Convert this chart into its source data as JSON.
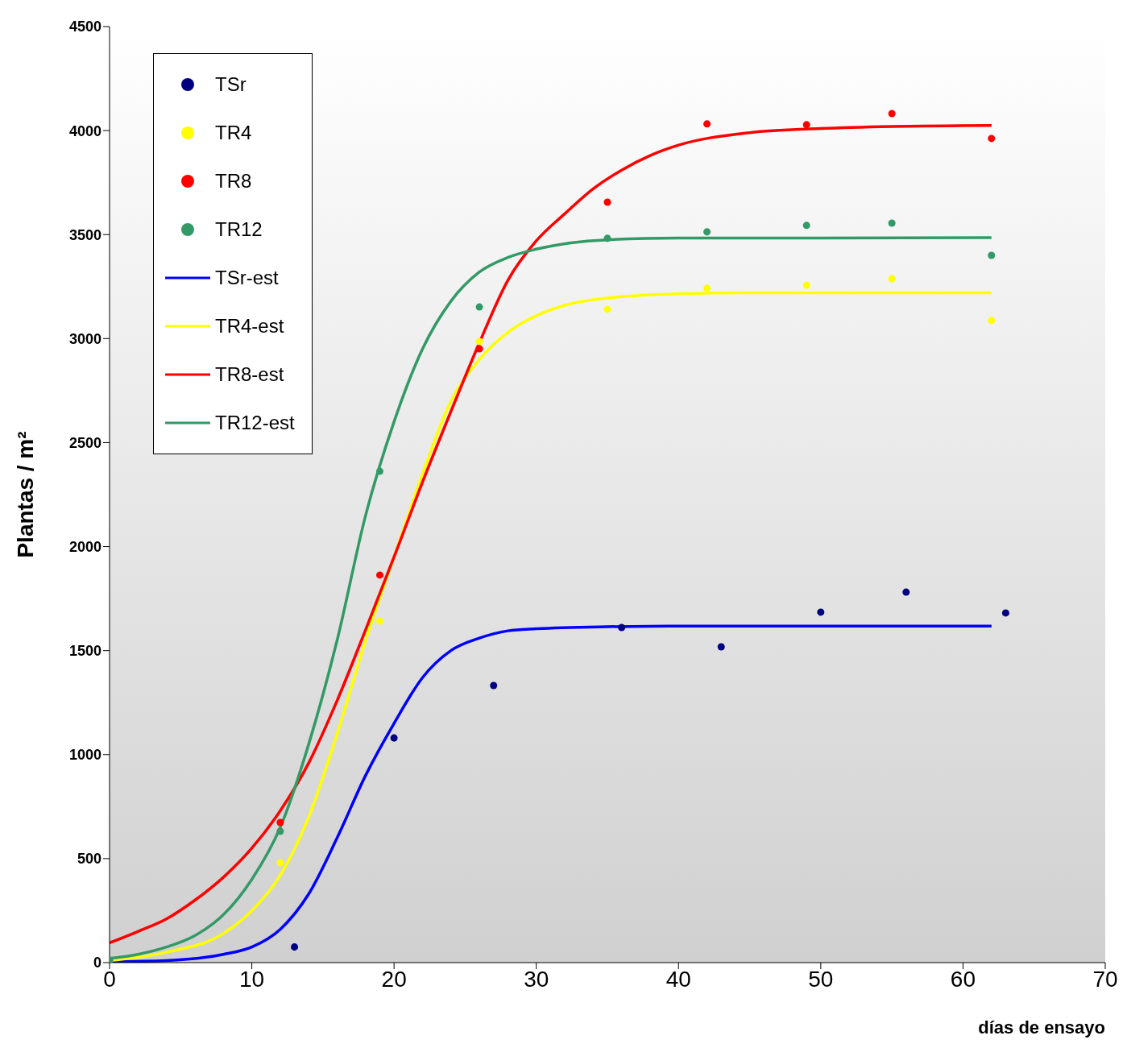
{
  "chart_data": {
    "type": "line",
    "xlabel": "días de ensayo",
    "ylabel": "Plantas / m²",
    "xlim": [
      0,
      70
    ],
    "xticks": [
      0,
      10,
      20,
      30,
      40,
      50,
      60,
      70
    ],
    "ylim": [
      0,
      4500
    ],
    "yticks": [
      0,
      500,
      1000,
      1500,
      2000,
      2500,
      3000,
      3500,
      4000,
      4500
    ],
    "grid": false,
    "legend": "top left",
    "series": [
      {
        "name": "TSr",
        "type": "scatter",
        "marker": "circle",
        "color": "#000080",
        "x": [
          13,
          20,
          27,
          36,
          43,
          50,
          56,
          63
        ],
        "values": [
          75,
          1080,
          1332,
          1611,
          1518,
          1685,
          1781,
          1681
        ]
      },
      {
        "name": "TR4",
        "type": "scatter",
        "marker": "circle",
        "color": "#ffff00",
        "x": [
          12,
          19,
          26,
          35,
          42,
          49,
          55,
          62
        ],
        "values": [
          480,
          1642,
          2986,
          3141,
          3242,
          3257,
          3288,
          3087
        ]
      },
      {
        "name": "TR8",
        "type": "scatter",
        "marker": "circle",
        "color": "#ff0000",
        "x": [
          12,
          19,
          26,
          35,
          42,
          49,
          55,
          62
        ],
        "values": [
          674,
          1863,
          2951,
          3656,
          4032,
          4028,
          4082,
          3962
        ]
      },
      {
        "name": "TR12",
        "type": "scatter",
        "marker": "circle",
        "color": "#339966",
        "x": [
          0,
          12,
          19,
          26,
          35,
          42,
          49,
          55,
          62
        ],
        "values": [
          10,
          631,
          2362,
          3152,
          3482,
          3513,
          3544,
          3555,
          3400
        ]
      },
      {
        "name": "TSr-est",
        "marker": "none",
        "line_style": "solid",
        "color": "#0000ff",
        "x": [
          0,
          4,
          8,
          10,
          12,
          14,
          16,
          18,
          20,
          22,
          24,
          26,
          28,
          30,
          35,
          40,
          62
        ],
        "values": [
          5,
          10,
          40,
          75,
          160,
          330,
          600,
          900,
          1150,
          1370,
          1500,
          1560,
          1595,
          1605,
          1615,
          1618,
          1618
        ]
      },
      {
        "name": "TR4-est",
        "marker": "none",
        "line_style": "solid",
        "color": "#ffff00",
        "x": [
          0,
          4,
          8,
          10,
          12,
          14,
          16,
          18,
          20,
          22,
          24,
          26,
          28,
          30,
          32,
          35,
          40,
          45,
          62
        ],
        "values": [
          10,
          50,
          140,
          250,
          420,
          700,
          1100,
          1550,
          1950,
          2350,
          2700,
          2900,
          3030,
          3110,
          3160,
          3195,
          3215,
          3220,
          3220
        ]
      },
      {
        "name": "TR8-est",
        "marker": "none",
        "line_style": "solid",
        "color": "#ff0000",
        "x": [
          0,
          2,
          4,
          6,
          8,
          10,
          12,
          14,
          16,
          18,
          20,
          22,
          24,
          26,
          28,
          30,
          32,
          34,
          36,
          38,
          40,
          45,
          50,
          55,
          62
        ],
        "values": [
          95,
          150,
          210,
          300,
          410,
          550,
          730,
          960,
          1260,
          1600,
          1950,
          2310,
          2650,
          2980,
          3280,
          3470,
          3600,
          3720,
          3810,
          3880,
          3930,
          3990,
          4010,
          4020,
          4025
        ]
      },
      {
        "name": "TR12-est",
        "marker": "none",
        "line_style": "solid",
        "color": "#339966",
        "x": [
          0,
          2,
          4,
          6,
          8,
          10,
          12,
          14,
          16,
          18,
          20,
          22,
          24,
          26,
          28,
          30,
          35,
          40,
          62
        ],
        "values": [
          20,
          40,
          75,
          130,
          230,
          400,
          650,
          1050,
          1550,
          2150,
          2600,
          2950,
          3180,
          3320,
          3390,
          3430,
          3475,
          3483,
          3485
        ]
      }
    ]
  }
}
